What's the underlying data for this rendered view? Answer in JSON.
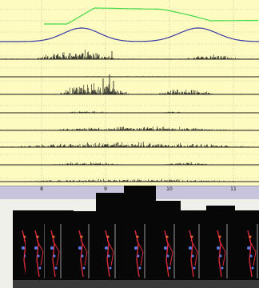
{
  "colors": {
    "plot_background": "#fdfbc0",
    "green_trace": "#46d94a",
    "blue_trace": "#3a3aa6",
    "emg_trace": "#111111",
    "axis_bar": "#c8c4dc",
    "skeleton_red": "#d8283a",
    "marker_blue": "#5a7ee8"
  },
  "timeline": {
    "tick_labels": [
      "8",
      "9",
      "10",
      "11"
    ]
  },
  "video_strip": {
    "frame_count": 11
  }
}
